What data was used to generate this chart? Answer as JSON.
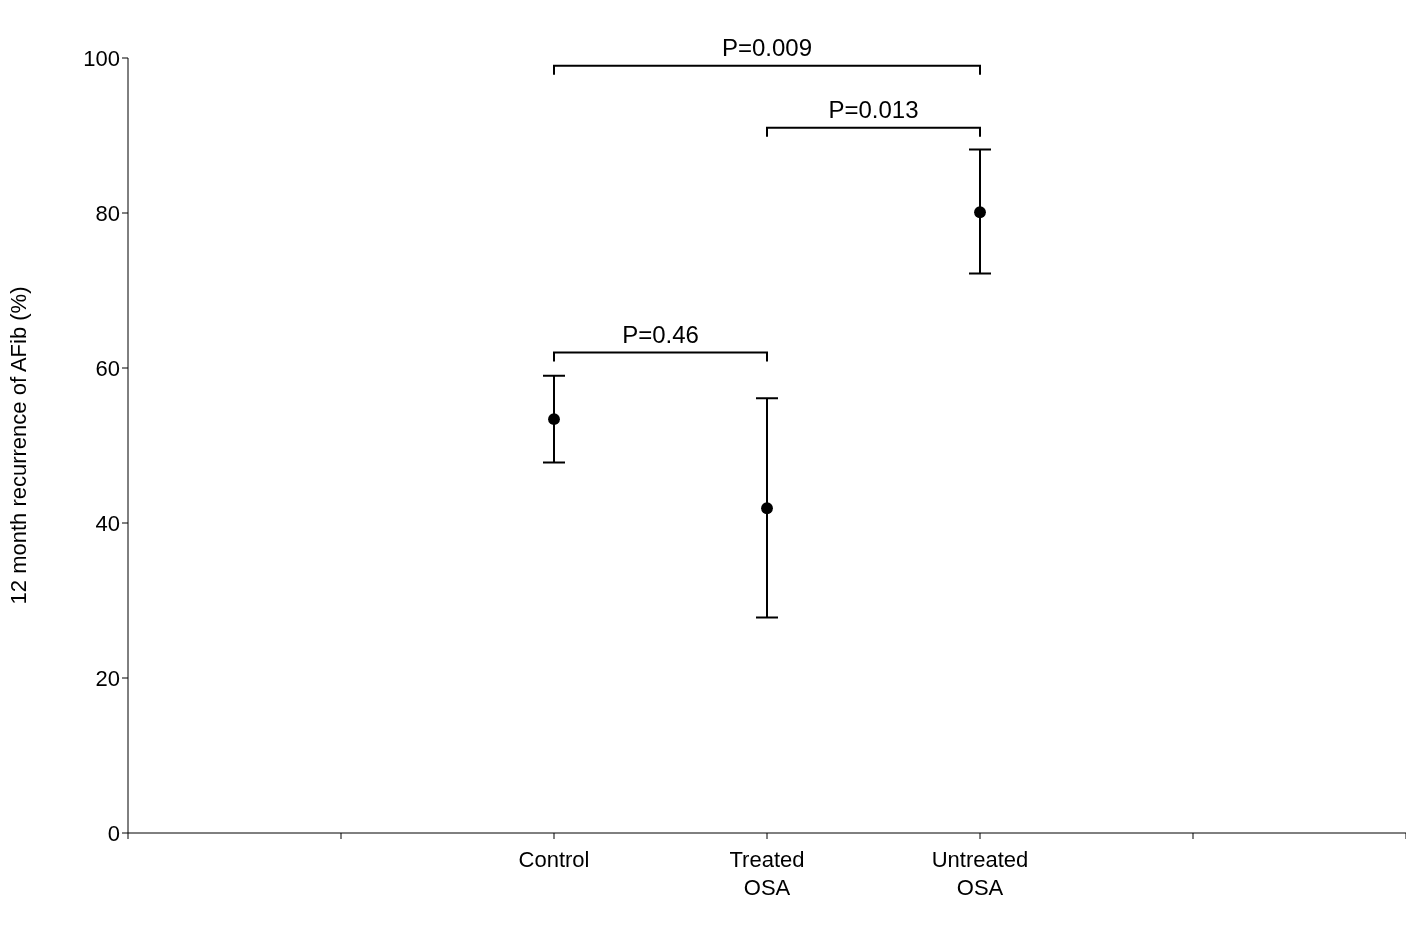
{
  "chart_data": {
    "type": "scatter",
    "ylabel": "12 month recurrence of AFib (%)",
    "categories": [
      null,
      null,
      "Control",
      "Treated OSA",
      "Untreated OSA",
      null,
      null
    ],
    "series": [
      {
        "color": "#000000",
        "values": [
          null,
          null,
          53.4,
          41.9,
          80.1,
          null,
          null
        ],
        "errors": [
          null,
          null,
          [
            47.8,
            59.0
          ],
          [
            27.8,
            56.1
          ],
          [
            72.2,
            88.2
          ],
          null,
          null
        ]
      }
    ],
    "ylim": [
      0,
      100
    ],
    "yticks": [
      0,
      20,
      40,
      60,
      80,
      100
    ],
    "marker": "circle",
    "annotations": [
      "P=0.009",
      "P=0.013",
      "P=0.46"
    ]
  }
}
